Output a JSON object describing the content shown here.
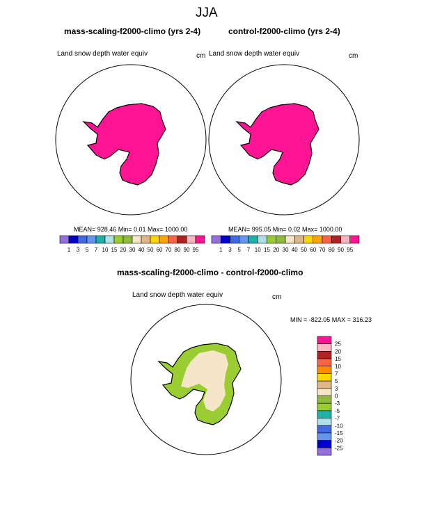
{
  "page": {
    "title": "JJA"
  },
  "chart_data": [
    {
      "type": "map",
      "projection": "south-polar-stereographic",
      "title": "mass-scaling-f2000-climo (yrs 2-4)",
      "field": "Land snow depth water equiv",
      "units": "cm",
      "stats": "MEAN= 928.46  Min=   0.01  Max= 1000.00",
      "colorbar": {
        "labels": [
          "1",
          "3",
          "5",
          "7",
          "10",
          "15",
          "20",
          "30",
          "40",
          "50",
          "60",
          "70",
          "80",
          "90",
          "95"
        ],
        "colors": [
          "#9370db",
          "#0000cd",
          "#4169e1",
          "#6495ed",
          "#20b2aa",
          "#b0e0e6",
          "#9acd32",
          "#8fbc3f",
          "#f5e6c8",
          "#deb887",
          "#ffd700",
          "#ffa500",
          "#ff6347",
          "#b22222",
          "#ffb6c1",
          "#ff1493"
        ]
      },
      "dominant_color": "#ff1493"
    },
    {
      "type": "map",
      "projection": "south-polar-stereographic",
      "title": "control-f2000-climo (yrs 2-4)",
      "field": "Land snow depth water equiv",
      "units": "cm",
      "stats": "MEAN= 995.05  Min=   0.02  Max= 1000.00",
      "colorbar": {
        "labels": [
          "1",
          "3",
          "5",
          "7",
          "10",
          "15",
          "20",
          "30",
          "40",
          "50",
          "60",
          "70",
          "80",
          "90",
          "95"
        ],
        "colors": [
          "#9370db",
          "#0000cd",
          "#4169e1",
          "#6495ed",
          "#20b2aa",
          "#b0e0e6",
          "#9acd32",
          "#8fbc3f",
          "#f5e6c8",
          "#deb887",
          "#ffd700",
          "#ffa500",
          "#ff6347",
          "#b22222",
          "#ffb6c1",
          "#ff1493"
        ]
      },
      "dominant_color": "#ff1493"
    },
    {
      "type": "map",
      "projection": "south-polar-stereographic",
      "title": "mass-scaling-f2000-climo - control-f2000-climo",
      "field": "Land snow depth water equiv",
      "units": "cm",
      "stats": "MIN = -822.05 MAX = 316.23",
      "colorbar": {
        "labels": [
          "25",
          "20",
          "15",
          "10",
          "7",
          "5",
          "3",
          "0",
          "-3",
          "-5",
          "-7",
          "-10",
          "-15",
          "-20",
          "-25"
        ],
        "colors": [
          "#ff1493",
          "#ffb6c1",
          "#b22222",
          "#ff6347",
          "#ff8c00",
          "#ffd700",
          "#deb887",
          "#f5e6c8",
          "#8fbc3f",
          "#9acd32",
          "#20b2aa",
          "#b0e0e6",
          "#4169e1",
          "#6495ed",
          "#0000cd",
          "#9370db"
        ]
      },
      "interior_color": "#f5e6c8",
      "coast_color": "#9acd32"
    }
  ]
}
